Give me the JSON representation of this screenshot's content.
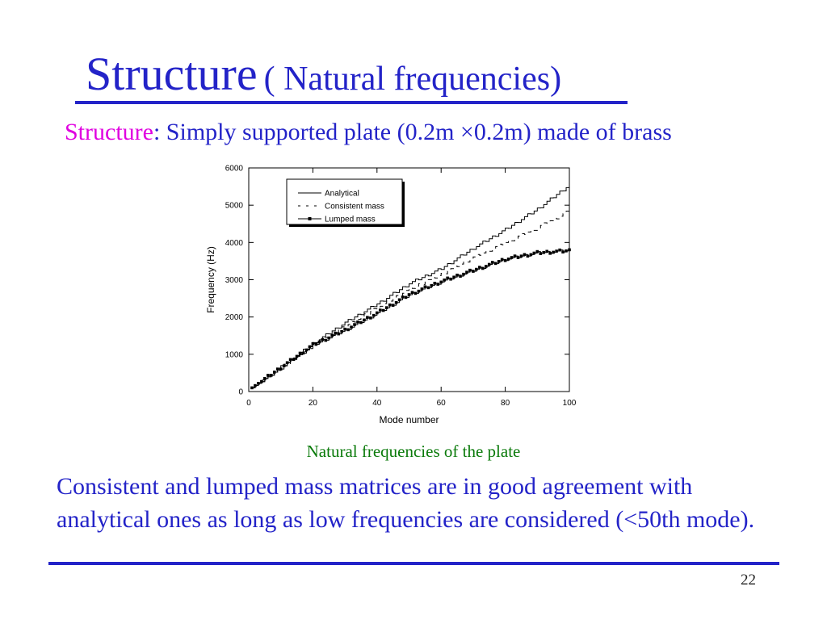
{
  "title": {
    "main": "Structure",
    "sub": "( Natural frequencies)"
  },
  "structure_line": {
    "label": "Structure",
    "text": ": Simply supported plate (0.2m ×0.2m) made of brass"
  },
  "caption": "Natural frequencies of the plate",
  "conclusion": "Consistent and lumped mass matrices are in good agreement with analytical ones as long as low frequencies are considered (<50th mode).",
  "page_number": "22",
  "colors": {
    "title_blue": "#2323c8",
    "structure_magenta": "#e000e0",
    "caption_green": "#0a7a0a"
  },
  "chart_data": {
    "type": "line",
    "xlabel": "Mode number",
    "ylabel": "Frequency (Hz)",
    "xlim": [
      0,
      100
    ],
    "ylim": [
      0,
      6000
    ],
    "xticks": [
      0,
      20,
      40,
      60,
      80,
      100
    ],
    "yticks": [
      0,
      1000,
      2000,
      3000,
      4000,
      5000,
      6000
    ],
    "grid": false,
    "legend_position": "top-left",
    "series": [
      {
        "name": "Analytical",
        "style": "solid",
        "x": [
          1,
          10,
          20,
          30,
          40,
          50,
          60,
          70,
          80,
          90,
          100
        ],
        "y": [
          100,
          660,
          1290,
          1850,
          2350,
          2900,
          3300,
          3850,
          4350,
          4900,
          5550
        ]
      },
      {
        "name": "Consistent mass",
        "style": "dashed",
        "x": [
          1,
          10,
          20,
          30,
          40,
          50,
          60,
          70,
          80,
          90,
          100
        ],
        "y": [
          100,
          650,
          1250,
          1750,
          2250,
          2750,
          3150,
          3600,
          4000,
          4400,
          4850
        ]
      },
      {
        "name": "Lumped mass",
        "style": "solid-square-markers",
        "x": [
          1,
          10,
          20,
          30,
          40,
          50,
          60,
          70,
          80,
          90,
          100
        ],
        "y": [
          100,
          640,
          1250,
          1650,
          2100,
          2600,
          2950,
          3250,
          3550,
          3720,
          3780
        ]
      }
    ]
  }
}
